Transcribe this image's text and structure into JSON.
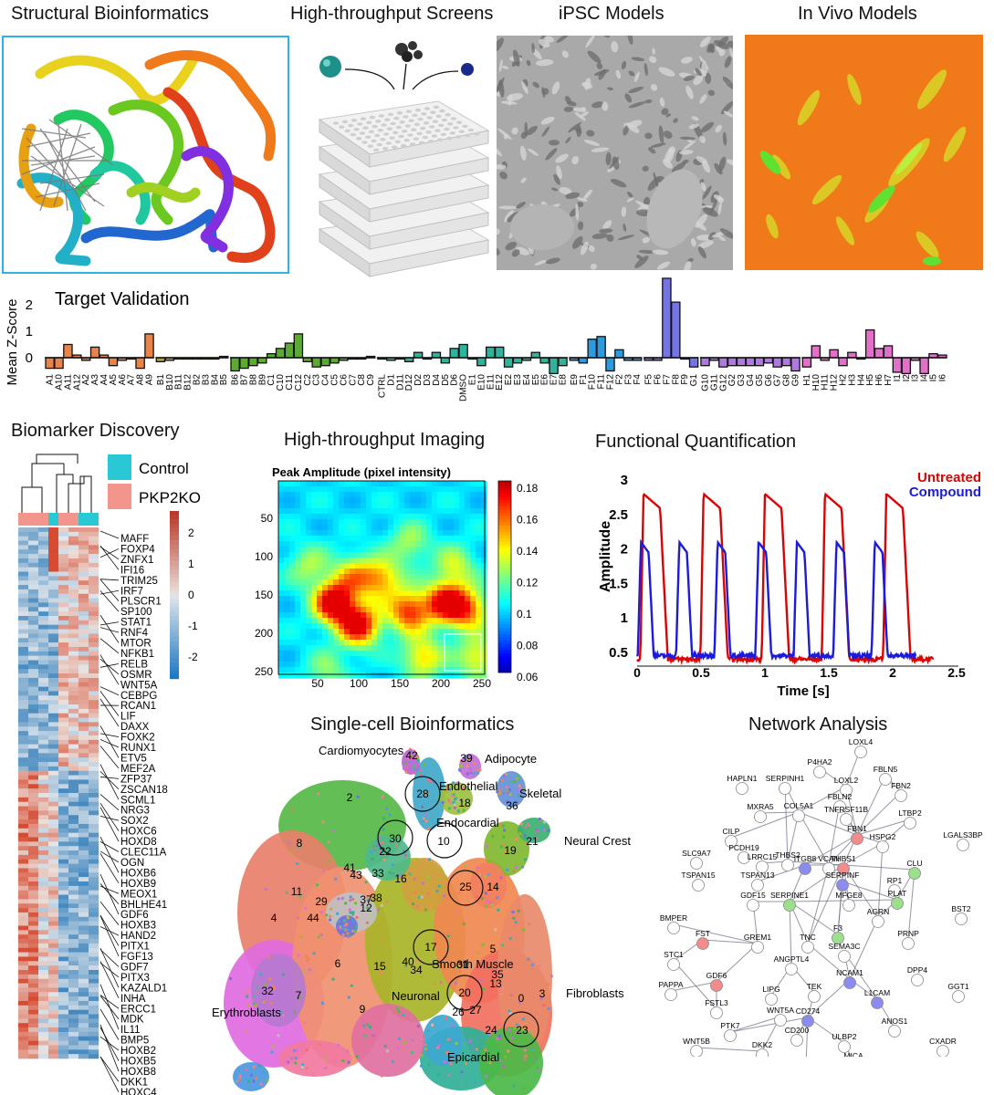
{
  "top_panels": {
    "structural": {
      "title": "Structural Bioinformatics"
    },
    "screens": {
      "title": "High-throughput Screens"
    },
    "ipsc": {
      "title": "iPSC Models"
    },
    "invivo": {
      "title": "In Vivo Models"
    }
  },
  "colors": {
    "panel_border": "#2bb2e6",
    "invivo_bg": "#f07a1a",
    "invivo_cell": "#ddd22a",
    "invivo_bright": "#52e02a",
    "plate": "#e8e8e8"
  },
  "target_validation": {
    "title": "Target Validation",
    "chart_data": {
      "type": "bar",
      "title": "Target Validation",
      "ylabel": "Mean Z-Score",
      "yticks": [
        0,
        1,
        2
      ],
      "ylim": [
        -0.8,
        3.0
      ],
      "groups": [
        {
          "color": "#e8844a",
          "categories": [
            "A1",
            "A10",
            "A11",
            "A12",
            "A2",
            "A3",
            "A4",
            "A5",
            "A6",
            "A7",
            "A8",
            "A9"
          ],
          "values": [
            -0.4,
            -0.4,
            0.5,
            0.1,
            -0.1,
            0.4,
            0.1,
            -0.3,
            -0.1,
            0.0,
            -0.4,
            0.9
          ]
        },
        {
          "color": "#b5a33a",
          "categories": [
            "B1",
            "B10",
            "B11",
            "B12",
            "B2",
            "B3",
            "B4",
            "B5"
          ],
          "values": [
            -0.15,
            -0.1,
            0.0,
            -0.05,
            -0.05,
            -0.05,
            -0.05,
            0.05
          ]
        },
        {
          "color": "#5aab2e",
          "categories": [
            "B6",
            "B7",
            "B8",
            "B9",
            "C1",
            "C10",
            "C11",
            "C12",
            "C2",
            "C3",
            "C4",
            "C5",
            "C6",
            "C7",
            "C8",
            "C9"
          ],
          "values": [
            -0.5,
            -0.4,
            -0.3,
            -0.2,
            0.15,
            0.35,
            0.55,
            0.9,
            -0.15,
            -0.35,
            -0.3,
            -0.2,
            -0.1,
            -0.05,
            0.0,
            0.05
          ]
        },
        {
          "color": "#2fb39a",
          "categories": [
            "CTRL",
            "D1",
            "D11",
            "D12",
            "D2",
            "D3",
            "D4",
            "D5",
            "D6",
            "DMSO",
            "E1",
            "E10",
            "E11",
            "E12",
            "E2",
            "E3",
            "E4",
            "E5",
            "E6",
            "E7",
            "E8"
          ],
          "values": [
            0.0,
            -0.1,
            0.0,
            -0.15,
            0.2,
            0.0,
            0.2,
            -0.2,
            0.35,
            0.5,
            0.0,
            -0.3,
            0.4,
            0.4,
            -0.35,
            -0.2,
            -0.1,
            0.2,
            -0.2,
            -0.6,
            -0.3
          ]
        },
        {
          "color": "#2b9be0",
          "categories": [
            "E9",
            "F1",
            "F10",
            "F11",
            "F12",
            "F2",
            "F3",
            "F4"
          ],
          "values": [
            -0.1,
            -0.2,
            0.7,
            0.8,
            -0.5,
            0.3,
            -0.1,
            -0.1
          ]
        },
        {
          "color": "#7474e6",
          "categories": [
            "F5",
            "F6",
            "F7",
            "F8",
            "F9",
            "G1"
          ],
          "values": [
            -0.1,
            -0.1,
            3.0,
            2.1,
            0.0,
            -0.35
          ]
        },
        {
          "color": "#b079e0",
          "categories": [
            "G10",
            "G11",
            "G12",
            "G2",
            "G3",
            "G4",
            "G5",
            "G6",
            "G7",
            "G8",
            "G9"
          ],
          "values": [
            -0.3,
            -0.1,
            -0.35,
            -0.3,
            -0.3,
            -0.3,
            -0.3,
            -0.2,
            -0.35,
            -0.3,
            -0.5
          ]
        },
        {
          "color": "#e070c8",
          "categories": [
            "H1",
            "H10",
            "H11",
            "H12",
            "H2",
            "H3",
            "H4",
            "H5",
            "H6",
            "H7",
            "I1",
            "I2",
            "I3",
            "I4",
            "I5",
            "I6"
          ],
          "values": [
            -0.35,
            0.45,
            -0.1,
            0.3,
            -0.3,
            0.2,
            0.0,
            1.05,
            0.35,
            0.45,
            -0.55,
            -0.6,
            -0.1,
            -0.6,
            0.15,
            0.1
          ]
        }
      ]
    }
  },
  "biomarker": {
    "title": "Biomarker Discovery",
    "legend": [
      {
        "label": "Control",
        "color": "#28c8d4"
      },
      {
        "label": "PKP2KO",
        "color": "#f2958a"
      }
    ],
    "colorbar_ticks": [
      "2",
      "1",
      "0",
      "-1",
      "-2"
    ],
    "genes": [
      "MAFF",
      "FOXP4",
      "ZNFX1",
      "IFI16",
      "TRIM25",
      "IRF7",
      "PLSCR1",
      "SP100",
      "STAT1",
      "RNF4",
      "MTOR",
      "NFKB1",
      "RELB",
      "OSMR",
      "WNT5A",
      "CEBPG",
      "RCAN1",
      "LIF",
      "DAXX",
      "FOXK2",
      "RUNX1",
      "ETV5",
      "MEF2A",
      "ZFP37",
      "ZSCAN18",
      "SCML1",
      "NRG3",
      "SOX2",
      "HOXC6",
      "HOXD8",
      "CLEC11A",
      "OGN",
      "HOXB6",
      "HOXB9",
      "MEOX1",
      "BHLHE41",
      "GDF6",
      "HOXB3",
      "HAND2",
      "PITX1",
      "FGF13",
      "GDF7",
      "PITX3",
      "KAZALD1",
      "INHA",
      "ERCC1",
      "MDK",
      "IL11",
      "BMP5",
      "HOXB2",
      "HOXB5",
      "HOXB8",
      "DKK1",
      "HOXC4"
    ]
  },
  "imaging": {
    "title": "High-throughput Imaging",
    "subtitle": "Peak Amplitude (pixel intensity)",
    "xticks": [
      "50",
      "100",
      "150",
      "200",
      "250"
    ],
    "yticks": [
      "50",
      "100",
      "150",
      "200",
      "250"
    ],
    "colorbar_ticks": [
      "0.18",
      "0.16",
      "0.14",
      "0.12",
      "0.1",
      "0.08",
      "0.06"
    ]
  },
  "functional": {
    "title": "Functional Quantification",
    "chart_data": {
      "type": "line",
      "xlabel": "Time [s]",
      "ylabel": "Amplitude",
      "xlim": [
        0,
        2.5
      ],
      "ylim": [
        0.3,
        3.0
      ],
      "xticks": [
        "0",
        "0.5",
        "1",
        "1.5",
        "2",
        "2.5"
      ],
      "yticks": [
        "3",
        "2.5",
        "2",
        "1.5",
        "1",
        "0.5"
      ],
      "series": [
        {
          "name": "Untreated",
          "color": "#e00000",
          "peaks": [
            0.05,
            0.52,
            1.0,
            1.47,
            1.95
          ],
          "peak_value": 2.8,
          "base_value": 0.4,
          "end": 2.32
        },
        {
          "name": "Compound",
          "color": "#1a1ae0",
          "peaks": [
            0.03,
            0.33,
            0.63,
            0.95,
            1.25,
            1.56,
            1.86
          ],
          "peak_value": 2.1,
          "base_value": 0.45,
          "end": 2.18
        }
      ]
    }
  },
  "singlecell": {
    "title": "Single-cell Bioinformatics",
    "labels": [
      "Cardiomyocytes",
      "Adipocyte",
      "Endothelial",
      "Skeletal",
      "Endocardial",
      "Neural Crest",
      "Smooth Muscle",
      "Neuronal",
      "Fibroblasts",
      "Erythroblasts",
      "Epicardial"
    ],
    "clusters": [
      "42",
      "39",
      "28",
      "18",
      "36",
      "2",
      "8",
      "30",
      "10",
      "22",
      "21",
      "19",
      "41",
      "43",
      "33",
      "16",
      "25",
      "14",
      "11",
      "29",
      "37",
      "38",
      "12",
      "4",
      "44",
      "17",
      "40",
      "5",
      "6",
      "15",
      "0",
      "34",
      "31",
      "35",
      "13",
      "20",
      "26",
      "27",
      "3",
      "32",
      "7",
      "9",
      "24",
      "23"
    ]
  },
  "network": {
    "title": "Network Analysis",
    "nodes": [
      "LOXL4",
      "P4HA2",
      "FBLN5",
      "HAPLN1",
      "SERPINH1",
      "LOXL2",
      "FBN2",
      "FBLN2",
      "MXRA5",
      "COL5A1",
      "TNFRSF11B",
      "LTBP2",
      "CILP",
      "FBN1",
      "HSPG2",
      "LGALS3BP",
      "SLC9A7",
      "PCDH19",
      "LRRC15",
      "THBS2",
      "ITGB8",
      "VCAN",
      "THBS1",
      "TSPAN15",
      "TSPAN13",
      "SERPINF",
      "CLU",
      "RP1",
      "PLAT",
      "GDF15",
      "SERPINE1",
      "MFGE8",
      "BMPER",
      "AGRN",
      "BST2",
      "FST",
      "GREM1",
      "TNC",
      "F3",
      "SEMA3C",
      "PRNP",
      "STC1",
      "ANGPTL4",
      "PAPPA",
      "GDF6",
      "LIPG",
      "TEK",
      "NCAM1",
      "DPP4",
      "GGT1",
      "FSTL3",
      "L1CAM",
      "WNT5A",
      "CD274",
      "PTK7",
      "ANOS1",
      "WNT5B",
      "DKK2",
      "CD200",
      "ULBP2",
      "CXADR",
      "TNFRSF21",
      "MICA"
    ]
  }
}
